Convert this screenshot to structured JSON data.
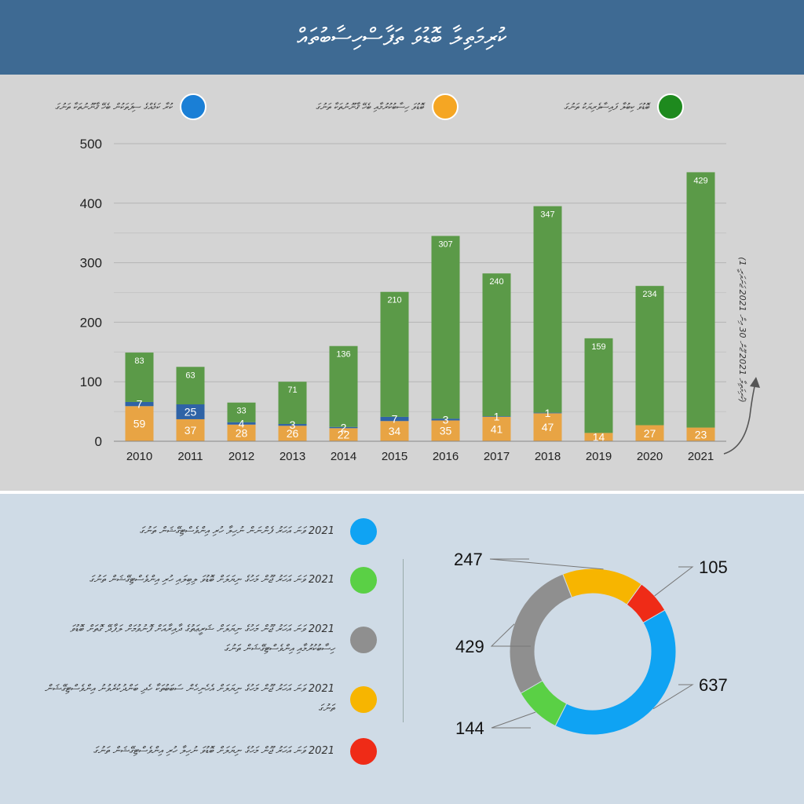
{
  "header": {
    "title": "ކުރިމަތިލާ ބޮޑުވަ ތަފާސްހިސާބުތައް"
  },
  "legend": [
    {
      "label": "ބޮޑުވަ ކިބުލާ ފައިސާވެރިޔަކު ތަނުގަ",
      "color": "#1e8a1e"
    },
    {
      "label": "ބޮޑުވަ ހިސާބުކުރުމާއި ބެހޭ ޤާނޫނުތަކާ ތަނުގަ",
      "color": "#f5a623"
    },
    {
      "label": "ކުރާ ކަމެއްގެ ސިފަތަކުން ބެހޭ ޤާނޫނުތަކާ ތަނުގަ",
      "color": "#1a7fd6"
    }
  ],
  "side_note": "(ކުރިމަތިލާ 2021 ޖޫން 30 އިން 2021 ޖަނަވަރީ 1)",
  "chart_data": [
    {
      "type": "bar",
      "stacked": true,
      "categories": [
        "2010",
        "2011",
        "2012",
        "2013",
        "2014",
        "2015",
        "2016",
        "2017",
        "2018",
        "2019",
        "2020",
        "2021"
      ],
      "series": [
        {
          "color": "#e8a444",
          "values": [
            59,
            37,
            28,
            26,
            22,
            34,
            35,
            41,
            47,
            14,
            27,
            23
          ]
        },
        {
          "color": "#2f63a6",
          "values": [
            7,
            25,
            4,
            3,
            2,
            7,
            3,
            1,
            1,
            0,
            0,
            0
          ]
        },
        {
          "color": "#5b9a48",
          "values": [
            83,
            63,
            33,
            71,
            136,
            210,
            307,
            240,
            347,
            159,
            234,
            429
          ]
        }
      ],
      "ylim": [
        0,
        500
      ],
      "yticks": [
        0,
        100,
        200,
        300,
        400,
        500
      ],
      "grid": true
    },
    {
      "type": "pie",
      "donut": true,
      "slices": [
        {
          "value": 637,
          "label": "637",
          "color": "#0fa3f3"
        },
        {
          "value": 144,
          "label": "144",
          "color": "#5ad045"
        },
        {
          "value": 429,
          "label": "429",
          "color": "#8f8f8f"
        },
        {
          "value": 247,
          "label": "247",
          "color": "#f7b500"
        },
        {
          "value": 105,
          "label": "105",
          "color": "#ef2b17"
        }
      ]
    }
  ],
  "donut_legend": [
    {
      "text": "2021 ވަނަ އަހަރު ފެންނަން ނުހިލާ ހުރި އިންވެސްޓިގޭޝަން ތަނުގަ",
      "color": "#0fa3f3"
    },
    {
      "text": "2021 ވަނަ އަހަރު ޖޫން މަހުގެ ނިޔަލަށް ބޮޑުވަ ލިބިލައި ހުރި އިންވެސްޓިގޭޝަން ތަނުގަ",
      "color": "#5ad045"
    },
    {
      "text": "2021 ވަނަ އަހަރު ޖޫން މަހުގެ ނިޔަލަށް ޝަރީޢަތުގެ ދާއިރާއަށް ފޮނުވުމަށް ލަފާދޭ ގޮތަށް ބޮޑުވަ ހިސާބުކުރުމާއި އިންވެސްޓިގޭޝަން ތަނުގަ",
      "color": "#8f8f8f"
    },
    {
      "text": "2021 ވަނަ އަހަރު ޖޫން މަހުގެ ނިޔަލަށް އެހެނިހެން ސަބަބުތަކާ ހެދި ބަންދުކުރެވުނު އިންވެސްޓިގޭޝަން ތަނުގަ",
      "color": "#f7b500"
    },
    {
      "text": "2021 ވަނަ އަހަރު ޖޫން މަހުގެ ނިޔަލަށް ބޮޑުވަ ނުހިލާ ހުރި އިންވެސްޓިގޭޝަން ތަނުގަ",
      "color": "#ef2b17"
    }
  ]
}
